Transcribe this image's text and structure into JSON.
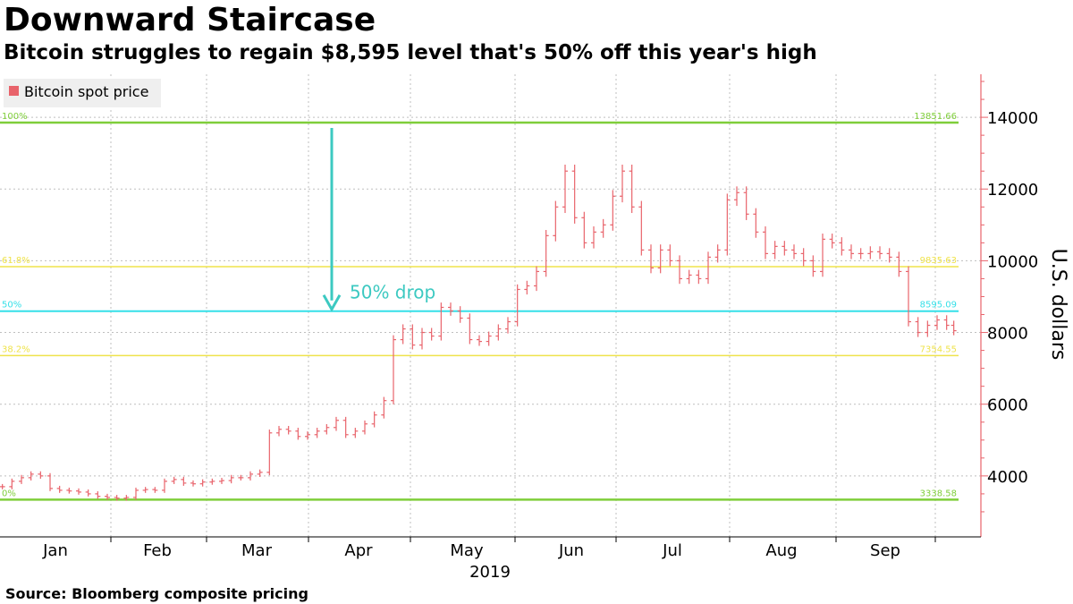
{
  "title": "Downward Staircase",
  "subtitle": "Bitcoin struggles to regain $8,595 level that's 50% off this year's high",
  "source": "Source: Bloomberg composite pricing",
  "colors": {
    "series": "#e8636b",
    "level_outer": "#7fce3a",
    "level_618": "#efe34b",
    "level_50": "#35e0e8",
    "annotation": "#3cc9c1",
    "grid": "#bfbfbf",
    "axis": "#e8636b"
  },
  "chart_data": {
    "type": "ohlc",
    "title": "Downward Staircase",
    "subtitle": "Bitcoin struggles to regain $8,595 level that's 50% off this year's high",
    "ylabel": "U.S. dollars",
    "xlabel": "2019",
    "ylim": [
      2300,
      15200
    ],
    "yticks": [
      4000,
      6000,
      8000,
      10000,
      12000,
      14000
    ],
    "xticks": [
      "Jan",
      "Feb",
      "Mar",
      "Apr",
      "May",
      "Jun",
      "Jul",
      "Aug",
      "Sep"
    ],
    "legend": {
      "entries": [
        "Bitcoin spot price"
      ],
      "placement": "top-left"
    },
    "grid": true,
    "fib_levels": [
      {
        "label": "100%",
        "value": 13851.66,
        "value_text": "13851.66"
      },
      {
        "label": "61.8%",
        "value": 9835.63,
        "value_text": "9835.63"
      },
      {
        "label": "50%",
        "value": 8595.09,
        "value_text": "8595.09"
      },
      {
        "label": "38.2%",
        "value": 7354.55,
        "value_text": "7354.55"
      },
      {
        "label": "0%",
        "value": 3338.58,
        "value_text": "3338.58"
      }
    ],
    "annotation": {
      "text": "50% drop",
      "from": 13851.66,
      "to": 8595.09
    },
    "series": [
      {
        "name": "Bitcoin spot price",
        "points": [
          {
            "d": 1,
            "v": 3700
          },
          {
            "d": 5,
            "v": 3850
          },
          {
            "d": 9,
            "v": 3950
          },
          {
            "d": 13,
            "v": 4050
          },
          {
            "d": 17,
            "v": 4000
          },
          {
            "d": 21,
            "v": 3650
          },
          {
            "d": 25,
            "v": 3600
          },
          {
            "d": 29,
            "v": 3580
          },
          {
            "d": 33,
            "v": 3550
          },
          {
            "d": 37,
            "v": 3500
          },
          {
            "d": 41,
            "v": 3430
          },
          {
            "d": 45,
            "v": 3400
          },
          {
            "d": 49,
            "v": 3380
          },
          {
            "d": 53,
            "v": 3400
          },
          {
            "d": 57,
            "v": 3600
          },
          {
            "d": 61,
            "v": 3620
          },
          {
            "d": 65,
            "v": 3600
          },
          {
            "d": 69,
            "v": 3850
          },
          {
            "d": 73,
            "v": 3900
          },
          {
            "d": 77,
            "v": 3800
          },
          {
            "d": 81,
            "v": 3780
          },
          {
            "d": 85,
            "v": 3830
          },
          {
            "d": 89,
            "v": 3850
          },
          {
            "d": 93,
            "v": 3870
          },
          {
            "d": 97,
            "v": 3950
          },
          {
            "d": 101,
            "v": 3950
          },
          {
            "d": 105,
            "v": 4050
          },
          {
            "d": 109,
            "v": 4100
          },
          {
            "d": 113,
            "v": 5200
          },
          {
            "d": 117,
            "v": 5300
          },
          {
            "d": 121,
            "v": 5250
          },
          {
            "d": 125,
            "v": 5100
          },
          {
            "d": 129,
            "v": 5150
          },
          {
            "d": 133,
            "v": 5250
          },
          {
            "d": 137,
            "v": 5350
          },
          {
            "d": 141,
            "v": 5550
          },
          {
            "d": 145,
            "v": 5150
          },
          {
            "d": 149,
            "v": 5250
          },
          {
            "d": 153,
            "v": 5450
          },
          {
            "d": 157,
            "v": 5700
          },
          {
            "d": 161,
            "v": 6100
          },
          {
            "d": 165,
            "v": 7800
          },
          {
            "d": 169,
            "v": 8100
          },
          {
            "d": 173,
            "v": 7650
          },
          {
            "d": 177,
            "v": 8000
          },
          {
            "d": 181,
            "v": 7900
          },
          {
            "d": 185,
            "v": 8700
          },
          {
            "d": 189,
            "v": 8600
          },
          {
            "d": 193,
            "v": 8400
          },
          {
            "d": 197,
            "v": 7800
          },
          {
            "d": 201,
            "v": 7750
          },
          {
            "d": 205,
            "v": 7900
          },
          {
            "d": 209,
            "v": 8100
          },
          {
            "d": 213,
            "v": 8300
          },
          {
            "d": 217,
            "v": 9200
          },
          {
            "d": 221,
            "v": 9300
          },
          {
            "d": 225,
            "v": 9700
          },
          {
            "d": 229,
            "v": 10700
          },
          {
            "d": 233,
            "v": 11500
          },
          {
            "d": 237,
            "v": 12500
          },
          {
            "d": 241,
            "v": 11200
          },
          {
            "d": 245,
            "v": 10500
          },
          {
            "d": 249,
            "v": 10800
          },
          {
            "d": 253,
            "v": 11000
          },
          {
            "d": 257,
            "v": 11800
          },
          {
            "d": 261,
            "v": 12500
          },
          {
            "d": 265,
            "v": 11500
          },
          {
            "d": 269,
            "v": 10300
          },
          {
            "d": 273,
            "v": 9800
          },
          {
            "d": 277,
            "v": 10300
          },
          {
            "d": 281,
            "v": 10000
          },
          {
            "d": 285,
            "v": 9500
          },
          {
            "d": 289,
            "v": 9600
          },
          {
            "d": 293,
            "v": 9500
          },
          {
            "d": 297,
            "v": 10100
          },
          {
            "d": 301,
            "v": 10300
          },
          {
            "d": 305,
            "v": 11700
          },
          {
            "d": 309,
            "v": 11900
          },
          {
            "d": 313,
            "v": 11300
          },
          {
            "d": 317,
            "v": 10800
          },
          {
            "d": 321,
            "v": 10200
          },
          {
            "d": 325,
            "v": 10400
          },
          {
            "d": 329,
            "v": 10300
          },
          {
            "d": 333,
            "v": 10200
          },
          {
            "d": 337,
            "v": 10000
          },
          {
            "d": 341,
            "v": 9700
          },
          {
            "d": 345,
            "v": 10600
          },
          {
            "d": 349,
            "v": 10500
          },
          {
            "d": 353,
            "v": 10300
          },
          {
            "d": 357,
            "v": 10200
          },
          {
            "d": 361,
            "v": 10200
          },
          {
            "d": 365,
            "v": 10250
          },
          {
            "d": 369,
            "v": 10200
          },
          {
            "d": 373,
            "v": 10100
          },
          {
            "d": 377,
            "v": 9700
          },
          {
            "d": 381,
            "v": 8300
          },
          {
            "d": 385,
            "v": 8000
          },
          {
            "d": 389,
            "v": 8200
          },
          {
            "d": 393,
            "v": 8350
          },
          {
            "d": 397,
            "v": 8200
          },
          {
            "d": 400,
            "v": 8050
          }
        ]
      }
    ]
  }
}
